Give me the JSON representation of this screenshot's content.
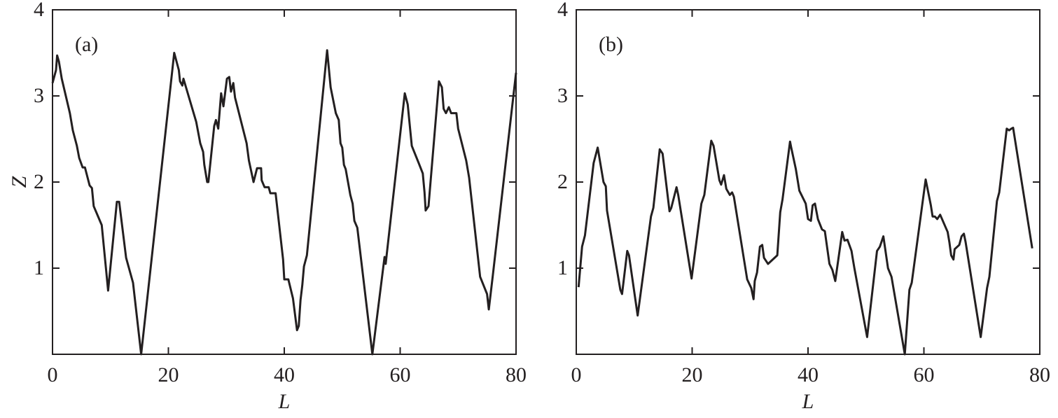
{
  "chart_data": [
    {
      "type": "line",
      "annotation": "(a)",
      "x_label": "L",
      "y_label": "Z",
      "color": "#231f20",
      "xlim": [
        0,
        80
      ],
      "xticks": [
        0,
        20,
        40,
        60,
        80
      ],
      "ylim": [
        0,
        4
      ],
      "yticks": [
        1,
        2,
        3,
        4
      ],
      "x": [
        0,
        0.6,
        0.8,
        1.1,
        1.6,
        3.0,
        3.5,
        4.2,
        4.6,
        5.2,
        5.6,
        6.4,
        6.8,
        7.1,
        8.5,
        9.6,
        11.1,
        11.5,
        12.7,
        13.9,
        15.3,
        21.0,
        21.8,
        22.0,
        22.4,
        22.6,
        24.8,
        25.5,
        26.0,
        26.2,
        26.7,
        26.9,
        27.9,
        28.2,
        28.6,
        29.1,
        29.5,
        30.1,
        30.5,
        30.8,
        31.2,
        31.5,
        33.5,
        33.9,
        34.7,
        35.3,
        36.0,
        36.1,
        36.6,
        37.3,
        37.6,
        38.5,
        39.8,
        40.0,
        40.7,
        41.5,
        42.2,
        42.5,
        42.8,
        43.1,
        43.4,
        43.9,
        47.4,
        48.0,
        48.9,
        49.4,
        49.7,
        50.0,
        50.3,
        50.6,
        51.4,
        51.8,
        52.1,
        52.6,
        55.2,
        57.3,
        57.5,
        60.8,
        61.3,
        62.0,
        63.2,
        63.9,
        64.2,
        64.4,
        64.9,
        66.7,
        67.2,
        67.5,
        67.9,
        68.4,
        68.8,
        69.7,
        70.0,
        71.4,
        71.9,
        73.8,
        75.0,
        75.3,
        76.0,
        80.0
      ],
      "values": [
        3.15,
        3.3,
        3.47,
        3.4,
        3.2,
        2.8,
        2.6,
        2.42,
        2.28,
        2.17,
        2.17,
        1.96,
        1.93,
        1.72,
        1.5,
        0.74,
        1.77,
        1.77,
        1.12,
        0.83,
        0.0,
        3.5,
        3.3,
        3.17,
        3.12,
        3.2,
        2.7,
        2.45,
        2.35,
        2.2,
        2.0,
        2.0,
        2.65,
        2.72,
        2.62,
        3.03,
        2.88,
        3.2,
        3.22,
        3.05,
        3.15,
        2.98,
        2.45,
        2.25,
        2.0,
        2.16,
        2.16,
        2.02,
        1.94,
        1.94,
        1.87,
        1.87,
        1.1,
        0.87,
        0.87,
        0.65,
        0.28,
        0.33,
        0.63,
        0.8,
        1.02,
        1.15,
        3.53,
        3.1,
        2.8,
        2.72,
        2.45,
        2.4,
        2.2,
        2.15,
        1.85,
        1.75,
        1.55,
        1.47,
        0.0,
        1.13,
        1.05,
        3.03,
        2.9,
        2.42,
        2.22,
        2.1,
        1.88,
        1.67,
        1.72,
        3.17,
        3.1,
        2.85,
        2.8,
        2.87,
        2.8,
        2.8,
        2.62,
        2.25,
        2.05,
        0.9,
        0.7,
        0.52,
        0.92,
        3.27
      ]
    },
    {
      "type": "line",
      "annotation": "(b)",
      "x_label": "L",
      "color": "#231f20",
      "xlim": [
        0,
        80
      ],
      "xticks": [
        0,
        20,
        40,
        60,
        80
      ],
      "ylim": [
        0,
        4
      ],
      "yticks": [
        1,
        2,
        3,
        4
      ],
      "x": [
        0.4,
        1.0,
        1.5,
        3.0,
        3.7,
        4.7,
        5.1,
        5.3,
        7.6,
        7.9,
        8.8,
        9.1,
        10.6,
        12.9,
        13.3,
        14.4,
        14.9,
        16.1,
        16.4,
        17.3,
        17.6,
        19.9,
        21.6,
        22.1,
        23.3,
        23.7,
        24.7,
        25.0,
        25.5,
        25.9,
        26.5,
        26.9,
        27.2,
        29.5,
        30.2,
        30.6,
        30.8,
        31.2,
        31.7,
        32.1,
        32.4,
        33.1,
        34.7,
        35.2,
        35.6,
        36.9,
        37.1,
        37.9,
        38.5,
        39.6,
        40.0,
        40.5,
        40.8,
        41.2,
        41.7,
        42.4,
        42.9,
        43.7,
        44.2,
        44.7,
        45.9,
        46.3,
        46.8,
        47.5,
        47.7,
        48.0,
        50.2,
        51.9,
        52.4,
        53.0,
        53.8,
        54.4,
        56.7,
        57.5,
        57.9,
        60.3,
        61.2,
        61.5,
        61.9,
        62.3,
        62.8,
        64.1,
        64.4,
        64.7,
        65.1,
        65.3,
        66.1,
        66.5,
        66.9,
        67.2,
        69.8,
        70.9,
        71.3,
        72.6,
        73.0,
        74.3,
        74.7,
        75.1,
        75.4,
        78.7
      ],
      "values": [
        0.78,
        1.25,
        1.38,
        2.22,
        2.4,
        2.0,
        1.95,
        1.67,
        0.75,
        0.7,
        1.2,
        1.15,
        0.45,
        1.6,
        1.7,
        2.38,
        2.33,
        1.66,
        1.7,
        1.94,
        1.85,
        0.88,
        1.75,
        1.85,
        2.48,
        2.42,
        2.02,
        1.97,
        2.08,
        1.92,
        1.85,
        1.88,
        1.83,
        0.87,
        0.77,
        0.64,
        0.85,
        0.95,
        1.25,
        1.27,
        1.12,
        1.05,
        1.15,
        1.65,
        1.8,
        2.47,
        2.4,
        2.15,
        1.9,
        1.75,
        1.57,
        1.55,
        1.73,
        1.75,
        1.57,
        1.45,
        1.43,
        1.05,
        0.98,
        0.85,
        1.42,
        1.32,
        1.33,
        1.2,
        1.12,
        1.0,
        0.2,
        1.2,
        1.25,
        1.37,
        1.0,
        0.9,
        0.0,
        0.75,
        0.83,
        2.03,
        1.73,
        1.6,
        1.6,
        1.57,
        1.62,
        1.42,
        1.3,
        1.15,
        1.1,
        1.22,
        1.27,
        1.37,
        1.4,
        1.3,
        0.2,
        0.77,
        0.9,
        1.78,
        1.88,
        2.62,
        2.6,
        2.62,
        2.63,
        1.23
      ]
    }
  ]
}
